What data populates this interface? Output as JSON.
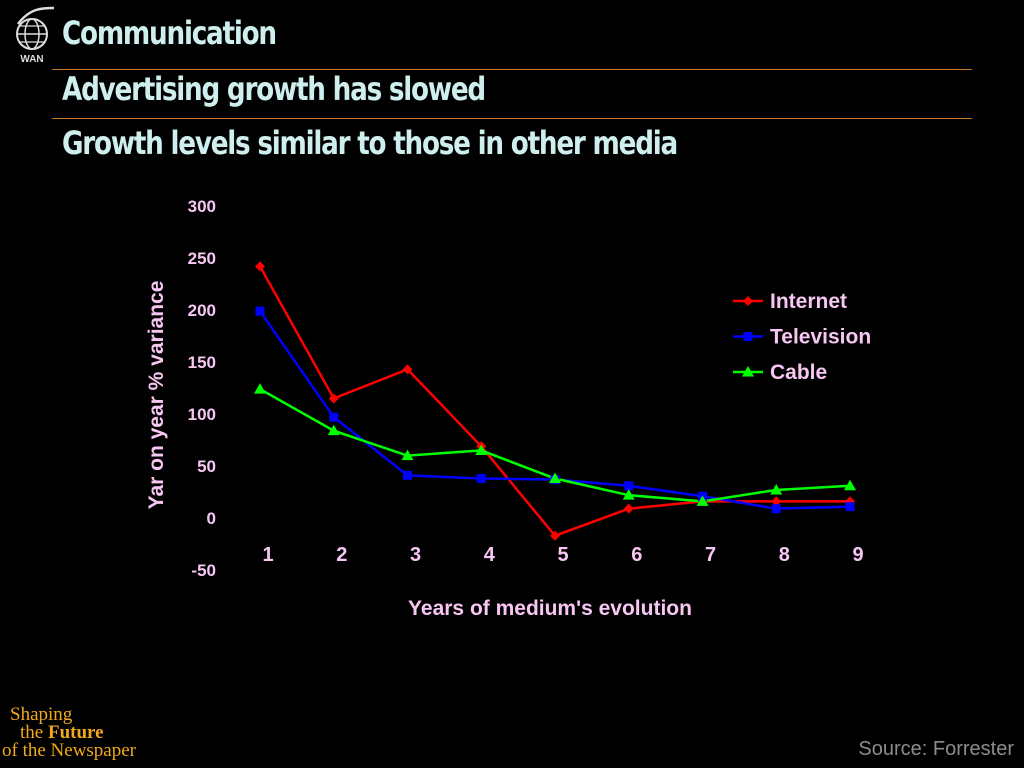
{
  "slide": {
    "title": "Communication",
    "subtitle": "Advertising growth has slowed",
    "subtitle2": "Growth levels similar to those in other media",
    "source": "Source: Forrester",
    "logo_text": "WAN",
    "brand": {
      "line1": "Shaping",
      "line2_prefix": "the ",
      "line2_bold": "Future",
      "line3": "of the Newspaper"
    }
  },
  "colors": {
    "heading": "#cfeeee",
    "rule": "#c9742e",
    "axis_text": "#f7c6f2",
    "brand": "#f2a81d",
    "source": "#8c8c8c"
  },
  "chart_data": {
    "type": "line",
    "title": "",
    "xlabel": "Years of medium's evolution",
    "ylabel": "Yar on year % variance",
    "x": [
      1,
      2,
      3,
      4,
      5,
      6,
      7,
      8,
      9
    ],
    "ylim": [
      -50,
      300
    ],
    "yticks": [
      -50,
      0,
      50,
      100,
      150,
      200,
      250,
      300
    ],
    "grid": false,
    "legend_position": "right",
    "series": [
      {
        "name": "Internet",
        "color": "#ff0000",
        "marker": "diamond",
        "values": [
          241,
          114,
          142,
          68,
          -18,
          8,
          15,
          15,
          15
        ]
      },
      {
        "name": "Television",
        "color": "#0000ff",
        "marker": "square",
        "values": [
          198,
          96,
          40,
          37,
          36,
          30,
          20,
          8,
          10
        ]
      },
      {
        "name": "Cable",
        "color": "#00ff00",
        "marker": "triangle",
        "values": [
          123,
          83,
          59,
          64,
          37,
          21,
          15,
          26,
          30
        ]
      }
    ]
  }
}
